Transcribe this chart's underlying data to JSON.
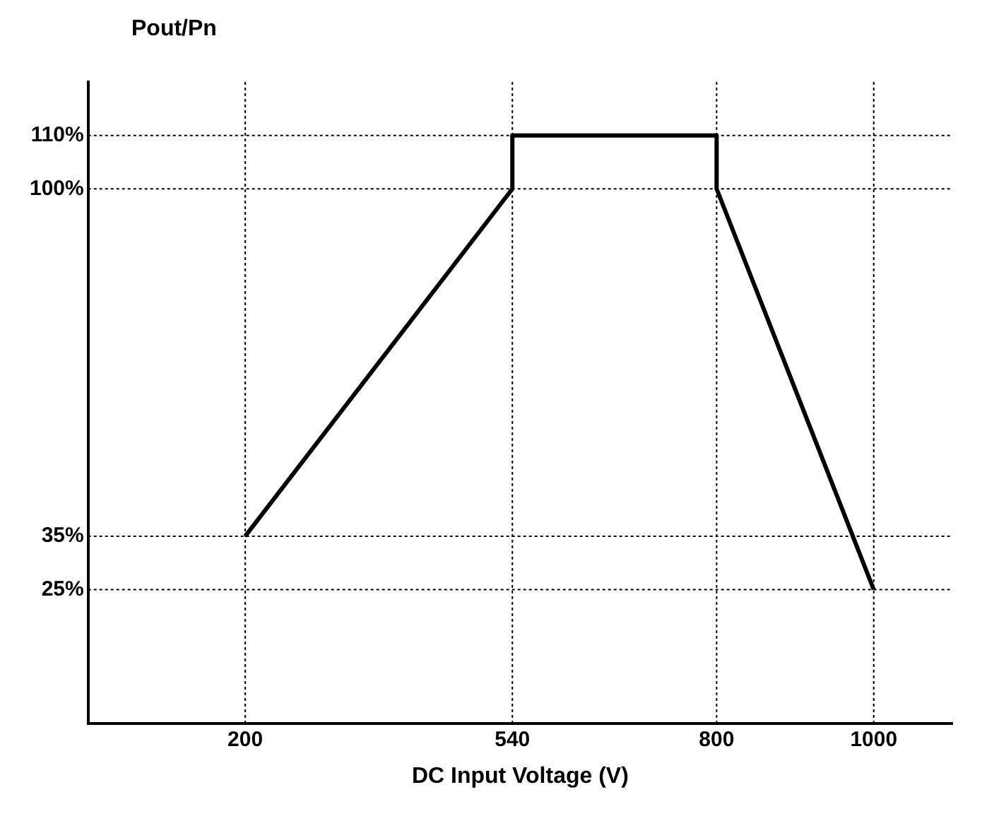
{
  "chart_data": {
    "type": "line",
    "xlabel": "DC Input Voltage (V)",
    "ylabel": "Pout/Pn",
    "x": [
      200,
      540,
      540,
      800,
      800,
      1000
    ],
    "series": [
      {
        "color": "#000000",
        "values": [
          35,
          100,
          110,
          110,
          100,
          25
        ]
      }
    ],
    "xlim": [
      0,
      1100
    ],
    "xticks": [
      200,
      540,
      800,
      1000
    ],
    "ylim": [
      0,
      120
    ],
    "yticks": [
      {
        "value": 25,
        "label": "25%"
      },
      {
        "value": 35,
        "label": "35%"
      },
      {
        "value": 100,
        "label": "100%"
      },
      {
        "value": 110,
        "label": "110%"
      }
    ],
    "ref_lines": [
      {
        "axis": "y",
        "value": 110,
        "color": "#000000",
        "line_style": "dotted"
      },
      {
        "axis": "y",
        "value": 100,
        "color": "#000000",
        "line_style": "dotted"
      },
      {
        "axis": "y",
        "value": 35,
        "color": "#000000",
        "line_style": "dotted"
      },
      {
        "axis": "y",
        "value": 25,
        "color": "#000000",
        "line_style": "dotted"
      },
      {
        "axis": "x",
        "value": 200,
        "color": "#000000",
        "line_style": "dotted"
      },
      {
        "axis": "x",
        "value": 540,
        "color": "#000000",
        "line_style": "dotted"
      },
      {
        "axis": "x",
        "value": 800,
        "color": "#000000",
        "line_style": "dotted"
      },
      {
        "axis": "x",
        "value": 1000,
        "color": "#000000",
        "line_style": "dotted"
      }
    ],
    "grid": false,
    "legend": false,
    "marker": "none",
    "line_style": "solid"
  }
}
